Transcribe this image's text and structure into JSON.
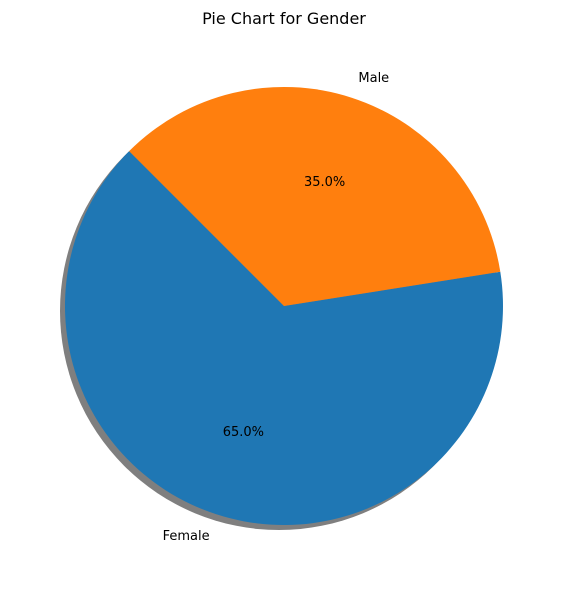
{
  "chart_data": {
    "type": "pie",
    "title": "Pie Chart for Gender",
    "labels": [
      "Female",
      "Male"
    ],
    "values": [
      65.0,
      35.0
    ],
    "percent_labels": [
      "65.0%",
      "35.0%"
    ],
    "colors": [
      "#1f77b4",
      "#ff7f0e"
    ],
    "shadow": true
  }
}
